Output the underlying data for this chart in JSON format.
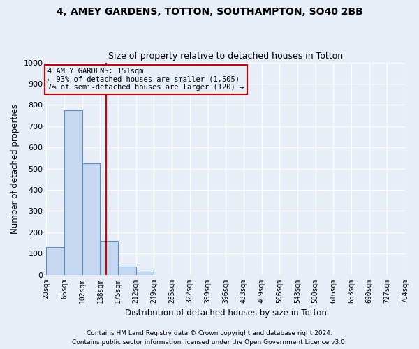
{
  "title": "4, AMEY GARDENS, TOTTON, SOUTHAMPTON, SO40 2BB",
  "subtitle": "Size of property relative to detached houses in Totton",
  "xlabel": "Distribution of detached houses by size in Totton",
  "ylabel": "Number of detached properties",
  "footer1": "Contains HM Land Registry data © Crown copyright and database right 2024.",
  "footer2": "Contains public sector information licensed under the Open Government Licence v3.0.",
  "bin_labels": [
    "28sqm",
    "65sqm",
    "102sqm",
    "138sqm",
    "175sqm",
    "212sqm",
    "249sqm",
    "285sqm",
    "322sqm",
    "359sqm",
    "396sqm",
    "433sqm",
    "469sqm",
    "506sqm",
    "543sqm",
    "580sqm",
    "616sqm",
    "653sqm",
    "690sqm",
    "727sqm",
    "764sqm"
  ],
  "n_bins": 20,
  "bar_values": [
    130,
    775,
    525,
    160,
    37,
    15,
    0,
    0,
    0,
    0,
    0,
    0,
    0,
    0,
    0,
    0,
    0,
    0,
    0,
    0
  ],
  "bar_color": "#c5d8f0",
  "bar_edge_color": "#5b8ec4",
  "property_size_bin": 3.5,
  "vline_color": "#cc0000",
  "ylim": [
    0,
    1000
  ],
  "yticks": [
    0,
    100,
    200,
    300,
    400,
    500,
    600,
    700,
    800,
    900,
    1000
  ],
  "ann_line1": "4 AMEY GARDENS: 151sqm",
  "ann_line2": "← 93% of detached houses are smaller (1,505)",
  "ann_line3": "7% of semi-detached houses are larger (120) →",
  "annotation_box_color": "#cc0000",
  "background_color": "#e8eef8",
  "grid_color": "#ffffff"
}
